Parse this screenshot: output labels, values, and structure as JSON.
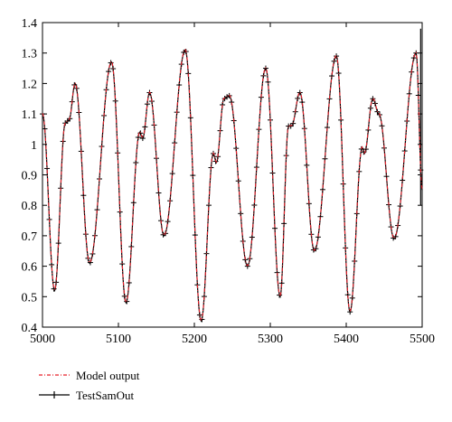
{
  "chart_data": {
    "type": "line",
    "title": "",
    "xlabel": "",
    "ylabel": "",
    "xlim": [
      5000,
      5500
    ],
    "ylim": [
      0.4,
      1.4
    ],
    "grid": false,
    "legend_position": "bottom-left, below plot",
    "x_ticks": [
      "5000",
      "5100",
      "5200",
      "5300",
      "5400",
      "5500"
    ],
    "y_ticks": [
      "0.4",
      "0.5",
      "0.6",
      "0.7",
      "0.8",
      "0.9",
      "1",
      "1.1",
      "1.2",
      "1.3",
      "1.4"
    ],
    "keypoints": [
      [
        5000,
        1.1
      ],
      [
        5016,
        0.52
      ],
      [
        5030,
        1.07
      ],
      [
        5035,
        1.08
      ],
      [
        5043,
        1.2
      ],
      [
        5062,
        0.61
      ],
      [
        5091,
        1.27
      ],
      [
        5110,
        0.48
      ],
      [
        5128,
        1.04
      ],
      [
        5132,
        1.02
      ],
      [
        5141,
        1.17
      ],
      [
        5160,
        0.7
      ],
      [
        5188,
        1.31
      ],
      [
        5209,
        0.42
      ],
      [
        5225,
        0.97
      ],
      [
        5229,
        0.94
      ],
      [
        5239,
        1.15
      ],
      [
        5246,
        1.16
      ],
      [
        5270,
        0.6
      ],
      [
        5294,
        1.25
      ],
      [
        5313,
        0.5
      ],
      [
        5324,
        1.06
      ],
      [
        5328,
        1.06
      ],
      [
        5339,
        1.17
      ],
      [
        5358,
        0.65
      ],
      [
        5387,
        1.29
      ],
      [
        5405,
        0.45
      ],
      [
        5421,
        0.99
      ],
      [
        5424,
        0.97
      ],
      [
        5435,
        1.15
      ],
      [
        5443,
        1.1
      ],
      [
        5463,
        0.69
      ],
      [
        5492,
        1.3
      ],
      [
        5500,
        0.85
      ]
    ],
    "series": [
      {
        "name": "Model output",
        "color": "#e8202a",
        "style": "dash-dot"
      },
      {
        "name": "TestSamOut",
        "color": "#000000",
        "style": "solid with plus markers"
      }
    ]
  }
}
